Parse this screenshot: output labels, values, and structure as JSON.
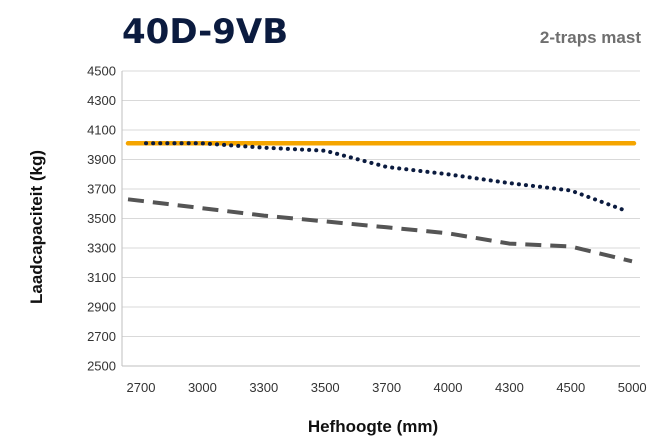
{
  "chart_data": {
    "type": "line",
    "title": "40D-9VB",
    "subtitle": "2-traps mast",
    "xlabel": "Hefhoogte (mm)",
    "ylabel": "Laadcapaciteit (kg)",
    "x_ticks": [
      "2700",
      "3000",
      "3300",
      "3500",
      "3700",
      "4000",
      "4300",
      "4500",
      "5000"
    ],
    "y_ticks": [
      "4500",
      "4300",
      "4100",
      "3900",
      "3700",
      "3500",
      "3300",
      "3100",
      "2900",
      "2700",
      "2500"
    ],
    "ylim": [
      2500,
      4500
    ],
    "grid": true,
    "series": [
      {
        "style": "solid",
        "color": "#f5a500",
        "x": [
          "2700",
          "3000",
          "3300",
          "3500",
          "3700",
          "4000",
          "4300",
          "4500",
          "5000"
        ],
        "values": [
          4010,
          4010,
          4010,
          4010,
          4010,
          4010,
          4010,
          4010,
          4010
        ]
      },
      {
        "style": "dotted",
        "color": "#0b1b3f",
        "x": [
          "2700",
          "3000",
          "3300",
          "3500",
          "3700",
          "4000",
          "4300",
          "4500",
          "5000"
        ],
        "values": [
          4010,
          4010,
          3980,
          3960,
          3850,
          3800,
          3740,
          3690,
          3560
        ]
      },
      {
        "style": "dashed",
        "color": "#555555",
        "x": [
          "2700",
          "3000",
          "3300",
          "3500",
          "3700",
          "4000",
          "4300",
          "4500",
          "5000"
        ],
        "values": [
          3630,
          3570,
          3520,
          3480,
          3440,
          3400,
          3330,
          3310,
          3210
        ]
      }
    ]
  }
}
